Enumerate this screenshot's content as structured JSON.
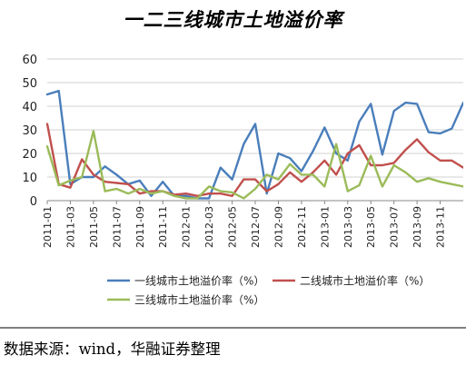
{
  "chart_data": {
    "type": "line",
    "title": "一二三线城市土地溢价率",
    "x": [
      "2011-01",
      "2011-02",
      "2011-03",
      "2011-04",
      "2011-05",
      "2011-06",
      "2011-07",
      "2011-08",
      "2011-09",
      "2011-10",
      "2011-11",
      "2011-12",
      "2012-01",
      "2012-02",
      "2012-03",
      "2012-04",
      "2012-05",
      "2012-06",
      "2012-07",
      "2012-08",
      "2012-09",
      "2012-10",
      "2012-11",
      "2012-12",
      "2013-01",
      "2013-02",
      "2013-03",
      "2013-04",
      "2013-05",
      "2013-06",
      "2013-07",
      "2013-08",
      "2013-09",
      "2013-10",
      "2013-11",
      "2013-12",
      "2014-01"
    ],
    "x_tick_labels": [
      "2011-01",
      "2011-03",
      "2011-05",
      "2011-07",
      "2011-09",
      "2011-11",
      "2012-01",
      "2012-03",
      "2012-05",
      "2012-07",
      "2012-09",
      "2012-11",
      "2013-01",
      "2013-03",
      "2013-05",
      "2013-07",
      "2013-09",
      "2013-11"
    ],
    "ylim": [
      0,
      60
    ],
    "y_ticks": [
      0,
      10,
      20,
      30,
      40,
      50,
      60
    ],
    "grid": "horizontal",
    "legend_position": "bottom",
    "series": [
      {
        "name": "一线城市土地溢价率（%）",
        "color": "#4a7ebb",
        "values": [
          45,
          46.5,
          7,
          10,
          10,
          14.5,
          11,
          7,
          8.5,
          2,
          8,
          2,
          2,
          1,
          1,
          14,
          9,
          24,
          32.5,
          3,
          20,
          18,
          12.5,
          21,
          31,
          20,
          17,
          33.5,
          41,
          19.5,
          38,
          41.5,
          41,
          29,
          28.5,
          30.5,
          41.5
        ]
      },
      {
        "name": "二线城市土地溢价率（%）",
        "color": "#c0504d",
        "values": [
          32.5,
          7,
          5.5,
          17.5,
          11,
          8,
          7.5,
          7,
          3,
          4,
          4,
          2.5,
          3,
          2,
          3,
          3,
          2,
          9,
          9,
          4,
          7,
          12,
          8,
          12,
          17,
          11,
          20,
          23.5,
          15,
          15,
          16,
          21.5,
          26,
          20.5,
          17,
          17,
          14
        ]
      },
      {
        "name": "三线城市土地溢价率（%）",
        "color": "#9bbb59",
        "values": [
          23,
          6.5,
          8.5,
          10,
          29.5,
          4,
          5,
          3,
          5,
          3,
          4,
          2,
          1,
          1,
          6,
          4,
          3.5,
          1,
          5,
          11,
          9,
          15.5,
          11,
          11,
          6,
          24,
          4,
          6.5,
          19,
          6,
          15,
          12,
          8,
          9.5,
          8,
          7,
          6
        ]
      }
    ],
    "source": "数据来源：wind，华融证券整理"
  },
  "colors": {
    "grid": "#d0d0d0",
    "axis": "#888888",
    "text": "#222222"
  }
}
